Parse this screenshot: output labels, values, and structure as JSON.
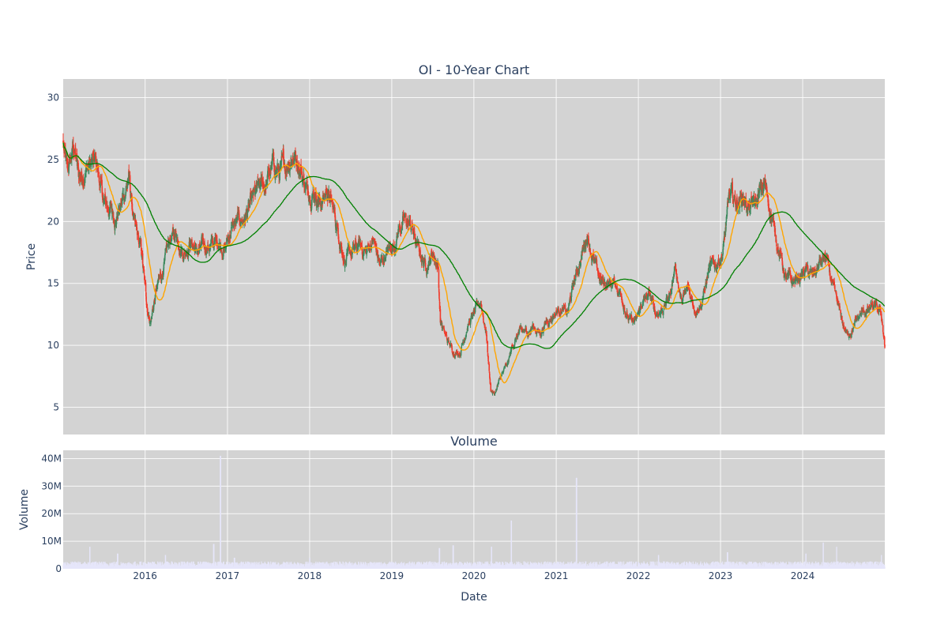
{
  "chart_data": [
    {
      "type": "candlestick",
      "title": "OI - 10-Year Chart",
      "ylabel": "Price",
      "ylim": [
        2.8,
        31.5
      ],
      "xlim": [
        "2015-01-02",
        "2024-12-31"
      ],
      "y_ticks": [
        5,
        10,
        15,
        20,
        25,
        30
      ],
      "x_ticks": [
        "2016",
        "2017",
        "2018",
        "2019",
        "2020",
        "2021",
        "2022",
        "2023",
        "2024"
      ],
      "grid": true,
      "colors": {
        "up": "#3d8a5f",
        "down": "#f03a2a",
        "ma_short": "#ffa500",
        "ma_long": "#008000",
        "background": "#d3d3d3",
        "volume": "#e6e6fa"
      },
      "close_anchors": [
        [
          "2015-01-02",
          26.2
        ],
        [
          "2015-01-20",
          23.8
        ],
        [
          "2015-02-20",
          26.0
        ],
        [
          "2015-03-15",
          23.4
        ],
        [
          "2015-04-20",
          24.6
        ],
        [
          "2015-06-01",
          24.5
        ],
        [
          "2015-07-01",
          21.5
        ],
        [
          "2015-08-01",
          21.0
        ],
        [
          "2015-08-25",
          20.3
        ],
        [
          "2015-09-20",
          21.5
        ],
        [
          "2015-10-20",
          23.5
        ],
        [
          "2015-11-15",
          19.5
        ],
        [
          "2015-12-15",
          17.5
        ],
        [
          "2016-01-10",
          13.0
        ],
        [
          "2016-01-25",
          12.0
        ],
        [
          "2016-02-20",
          14.5
        ],
        [
          "2016-03-20",
          16.0
        ],
        [
          "2016-04-20",
          18.5
        ],
        [
          "2016-05-20",
          19.0
        ],
        [
          "2016-06-20",
          17.5
        ],
        [
          "2016-07-20",
          18.5
        ],
        [
          "2016-08-20",
          17.5
        ],
        [
          "2016-09-20",
          18.0
        ],
        [
          "2016-10-20",
          18.0
        ],
        [
          "2016-11-20",
          18.5
        ],
        [
          "2016-12-20",
          17.8
        ],
        [
          "2017-01-20",
          19.5
        ],
        [
          "2017-02-20",
          20.0
        ],
        [
          "2017-03-20",
          20.3
        ],
        [
          "2017-04-20",
          21.5
        ],
        [
          "2017-05-20",
          22.5
        ],
        [
          "2017-06-20",
          23.0
        ],
        [
          "2017-07-20",
          24.5
        ],
        [
          "2017-08-20",
          24.0
        ],
        [
          "2017-09-20",
          24.5
        ],
        [
          "2017-10-20",
          25.5
        ],
        [
          "2017-11-20",
          24.5
        ],
        [
          "2017-12-20",
          22.5
        ],
        [
          "2018-01-20",
          22.5
        ],
        [
          "2018-02-20",
          21.5
        ],
        [
          "2018-03-20",
          22.5
        ],
        [
          "2018-04-15",
          21.0
        ],
        [
          "2018-05-10",
          19.0
        ],
        [
          "2018-06-10",
          16.8
        ],
        [
          "2018-07-10",
          17.5
        ],
        [
          "2018-08-10",
          18.0
        ],
        [
          "2018-09-10",
          17.5
        ],
        [
          "2018-10-10",
          18.5
        ],
        [
          "2018-11-10",
          16.5
        ],
        [
          "2018-12-10",
          17.5
        ],
        [
          "2019-01-10",
          18.0
        ],
        [
          "2019-02-01",
          19.5
        ],
        [
          "2019-03-01",
          20.0
        ],
        [
          "2019-04-01",
          19.5
        ],
        [
          "2019-05-01",
          17.5
        ],
        [
          "2019-06-01",
          16.5
        ],
        [
          "2019-07-01",
          17.5
        ],
        [
          "2019-07-25",
          16.5
        ],
        [
          "2019-08-05",
          12.0
        ],
        [
          "2019-09-01",
          10.5
        ],
        [
          "2019-10-01",
          9.5
        ],
        [
          "2019-11-01",
          9.5
        ],
        [
          "2019-12-01",
          11.5
        ],
        [
          "2020-01-01",
          12.5
        ],
        [
          "2020-02-01",
          13.5
        ],
        [
          "2020-02-25",
          11.0
        ],
        [
          "2020-03-15",
          6.5
        ],
        [
          "2020-04-01",
          6.0
        ],
        [
          "2020-05-01",
          7.5
        ],
        [
          "2020-06-01",
          8.5
        ],
        [
          "2020-06-20",
          10.0
        ],
        [
          "2020-07-20",
          11.0
        ],
        [
          "2020-08-20",
          11.0
        ],
        [
          "2020-09-20",
          11.5
        ],
        [
          "2020-10-20",
          11.0
        ],
        [
          "2020-11-20",
          12.0
        ],
        [
          "2020-12-20",
          12.5
        ],
        [
          "2021-01-20",
          13.0
        ],
        [
          "2021-02-20",
          12.5
        ],
        [
          "2021-03-20",
          15.0
        ],
        [
          "2021-04-20",
          17.0
        ],
        [
          "2021-05-20",
          19.0
        ],
        [
          "2021-06-20",
          16.5
        ],
        [
          "2021-07-20",
          15.0
        ],
        [
          "2021-08-20",
          15.0
        ],
        [
          "2021-09-20",
          15.0
        ],
        [
          "2021-10-20",
          14.0
        ],
        [
          "2021-11-20",
          12.0
        ],
        [
          "2021-12-20",
          11.8
        ],
        [
          "2022-01-20",
          13.5
        ],
        [
          "2022-02-20",
          14.0
        ],
        [
          "2022-03-20",
          12.5
        ],
        [
          "2022-04-20",
          13.0
        ],
        [
          "2022-05-20",
          14.0
        ],
        [
          "2022-06-15",
          16.5
        ],
        [
          "2022-07-10",
          13.5
        ],
        [
          "2022-08-10",
          14.5
        ],
        [
          "2022-09-10",
          13.0
        ],
        [
          "2022-10-10",
          13.5
        ],
        [
          "2022-11-10",
          16.0
        ],
        [
          "2022-12-10",
          16.5
        ],
        [
          "2023-01-10",
          17.5
        ],
        [
          "2023-01-25",
          19.5
        ],
        [
          "2023-02-10",
          22.0
        ],
        [
          "2023-03-10",
          21.5
        ],
        [
          "2023-04-10",
          22.0
        ],
        [
          "2023-05-10",
          21.0
        ],
        [
          "2023-06-10",
          21.5
        ],
        [
          "2023-07-15",
          23.0
        ],
        [
          "2023-08-15",
          20.5
        ],
        [
          "2023-09-15",
          18.0
        ],
        [
          "2023-10-15",
          15.5
        ],
        [
          "2023-11-15",
          15.0
        ],
        [
          "2023-12-15",
          15.5
        ],
        [
          "2024-01-15",
          16.0
        ],
        [
          "2024-02-15",
          15.5
        ],
        [
          "2024-03-15",
          16.5
        ],
        [
          "2024-04-15",
          17.0
        ],
        [
          "2024-05-15",
          14.5
        ],
        [
          "2024-06-15",
          12.5
        ],
        [
          "2024-07-15",
          10.8
        ],
        [
          "2024-08-15",
          11.5
        ],
        [
          "2024-09-15",
          12.5
        ],
        [
          "2024-10-15",
          12.8
        ],
        [
          "2024-11-15",
          13.0
        ],
        [
          "2024-12-15",
          12.5
        ],
        [
          "2024-12-31",
          10.0
        ]
      ]
    },
    {
      "type": "bar",
      "title": "Volume",
      "xlabel": "Date",
      "ylabel": "Volume",
      "ylim": [
        0,
        43000000
      ],
      "y_ticks": [
        0,
        10000000,
        20000000,
        30000000,
        40000000
      ],
      "y_tick_labels": [
        "0",
        "10M",
        "20M",
        "30M",
        "40M"
      ],
      "x_ticks": [
        "2016",
        "2017",
        "2018",
        "2019",
        "2020",
        "2021",
        "2022",
        "2023",
        "2024"
      ],
      "base_volume": 1800000,
      "spikes": [
        [
          "2015-05-01",
          8000000
        ],
        [
          "2015-09-01",
          5500000
        ],
        [
          "2016-04-01",
          5000000
        ],
        [
          "2016-11-01",
          9000000
        ],
        [
          "2016-12-01",
          41000000
        ],
        [
          "2017-02-01",
          4000000
        ],
        [
          "2018-01-01",
          4000000
        ],
        [
          "2019-08-01",
          7500000
        ],
        [
          "2019-10-01",
          8500000
        ],
        [
          "2020-03-20",
          8000000
        ],
        [
          "2020-06-15",
          17500000
        ],
        [
          "2021-04-01",
          33000000
        ],
        [
          "2022-04-01",
          5000000
        ],
        [
          "2023-02-01",
          6000000
        ],
        [
          "2024-01-15",
          5500000
        ],
        [
          "2024-04-01",
          9500000
        ],
        [
          "2024-06-01",
          8000000
        ],
        [
          "2024-12-15",
          5000000
        ]
      ]
    }
  ]
}
